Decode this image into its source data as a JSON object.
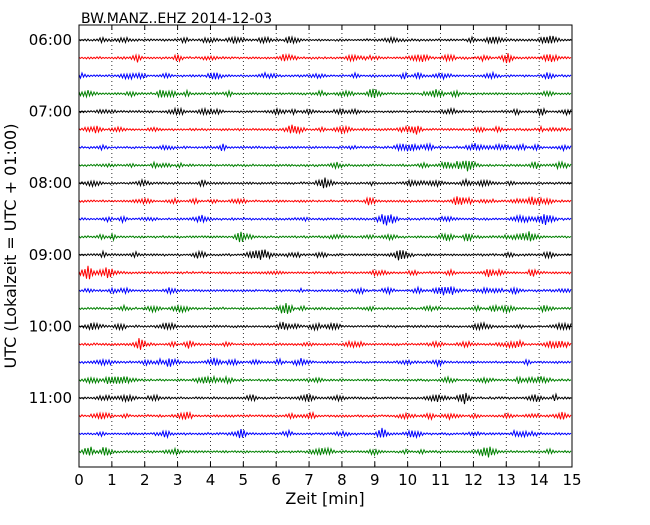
{
  "chart_data": {
    "type": "line",
    "title": "BW.MANZ..EHZ 2014-12-03",
    "xlabel": "Zeit  [min]",
    "ylabel": "UTC (Lokalzeit = UTC + 01:00)",
    "xlim": [
      0,
      15
    ],
    "x_ticks": [
      "0",
      "1",
      "2",
      "3",
      "4",
      "5",
      "6",
      "7",
      "8",
      "9",
      "10",
      "11",
      "12",
      "13",
      "14",
      "15"
    ],
    "y_ticks": [
      "06:00",
      "07:00",
      "08:00",
      "09:00",
      "10:00",
      "11:00"
    ],
    "grid": "vertical dotted lines at each minute",
    "trace_colors": [
      "#000000",
      "#ff0000",
      "#0000ff",
      "#008000"
    ],
    "series": [
      {
        "start": "06:00",
        "color": "#000000"
      },
      {
        "start": "06:15",
        "color": "#ff0000"
      },
      {
        "start": "06:30",
        "color": "#0000ff"
      },
      {
        "start": "06:45",
        "color": "#008000"
      },
      {
        "start": "07:00",
        "color": "#000000"
      },
      {
        "start": "07:15",
        "color": "#ff0000"
      },
      {
        "start": "07:30",
        "color": "#0000ff"
      },
      {
        "start": "07:45",
        "color": "#008000"
      },
      {
        "start": "08:00",
        "color": "#000000"
      },
      {
        "start": "08:15",
        "color": "#ff0000"
      },
      {
        "start": "08:30",
        "color": "#0000ff"
      },
      {
        "start": "08:45",
        "color": "#008000"
      },
      {
        "start": "09:00",
        "color": "#000000"
      },
      {
        "start": "09:15",
        "color": "#ff0000"
      },
      {
        "start": "09:30",
        "color": "#0000ff"
      },
      {
        "start": "09:45",
        "color": "#008000"
      },
      {
        "start": "10:00",
        "color": "#000000"
      },
      {
        "start": "10:15",
        "color": "#ff0000"
      },
      {
        "start": "10:30",
        "color": "#0000ff"
      },
      {
        "start": "10:45",
        "color": "#008000"
      },
      {
        "start": "11:00",
        "color": "#000000"
      },
      {
        "start": "11:15",
        "color": "#ff0000"
      },
      {
        "start": "11:30",
        "color": "#0000ff"
      },
      {
        "start": "11:45",
        "color": "#008000"
      }
    ]
  }
}
